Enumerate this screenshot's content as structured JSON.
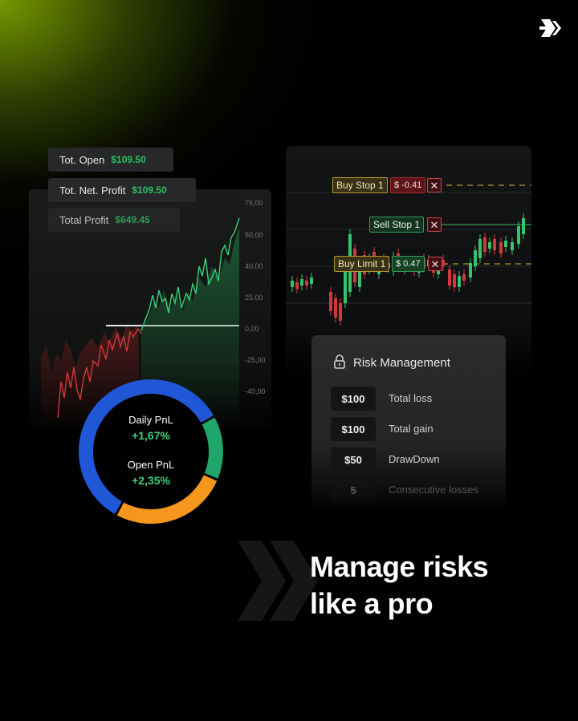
{
  "brand": {
    "logo": "double-chevron-arrow-icon"
  },
  "pnl_panel": {
    "stats": [
      {
        "label": "Tot. Open",
        "value": "$109.50"
      },
      {
        "label": "Tot. Net. Profit",
        "value": "$109.50"
      },
      {
        "label": "Total Profit",
        "value": "$649.45"
      }
    ],
    "y_axis_labels": [
      "75,00",
      "50,00",
      "40,00",
      "25,00",
      "0,00",
      "-25,00",
      "-40,00"
    ],
    "donut": {
      "daily_label": "Daily PnL",
      "daily_value": "+1,67%",
      "open_label": "Open PnL",
      "open_value": "+2,35%",
      "colors": {
        "blue": "#1f57d6",
        "green": "#20a66a",
        "orange": "#f5961d"
      }
    }
  },
  "chart_data": {
    "type": "line",
    "ylim": [
      -40,
      75
    ],
    "y_ticks": [
      75,
      50,
      40,
      25,
      0,
      -25,
      -40
    ]
  },
  "orders_panel": {
    "buy_stop": {
      "label": "Buy Stop 1",
      "value": "$ -0.41"
    },
    "sell_stop": {
      "label": "Sell Stop 1"
    },
    "buy_limit": {
      "label": "Buy Limit 1",
      "value": "$ 0.47"
    },
    "close_glyph": "✕"
  },
  "risk": {
    "title": "Risk Management",
    "rows": [
      {
        "value": "$100",
        "label": "Total loss"
      },
      {
        "value": "$100",
        "label": "Total gain"
      },
      {
        "value": "$50",
        "label": "DrawDown"
      },
      {
        "value": "5",
        "label": "Consecutive losses"
      }
    ]
  },
  "headline": {
    "line1": "Manage risks",
    "line2": "like a pro"
  }
}
